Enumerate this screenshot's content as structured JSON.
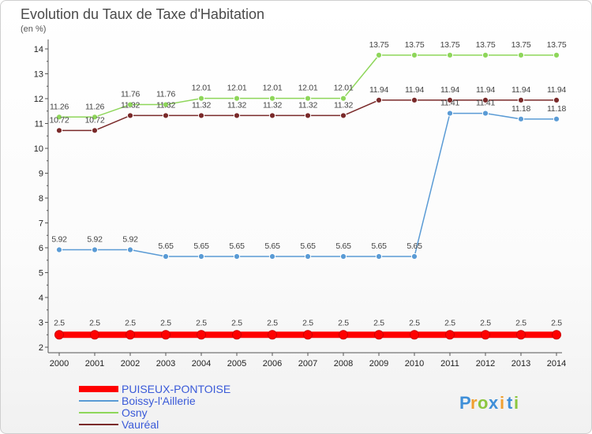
{
  "chart_data": {
    "type": "line",
    "title": "Evolution du Taux de Taxe d'Habitation",
    "subtitle": "(en %)",
    "xlabel": "",
    "ylabel": "",
    "x": [
      "2000",
      "2001",
      "2002",
      "2003",
      "2004",
      "2005",
      "2006",
      "2007",
      "2008",
      "2009",
      "2010",
      "2011",
      "2012",
      "2013",
      "2014"
    ],
    "y_ticks": [
      "2",
      "3",
      "4",
      "5",
      "6",
      "7",
      "8",
      "9",
      "10",
      "11",
      "12",
      "13",
      "14"
    ],
    "ylim": [
      2,
      14
    ],
    "grid": false,
    "legend_position": "bottom-left",
    "series": [
      {
        "name": "PUISEUX-PONTOISE",
        "color": "#ff0000",
        "values": [
          2.5,
          2.5,
          2.5,
          2.5,
          2.5,
          2.5,
          2.5,
          2.5,
          2.5,
          2.5,
          2.5,
          2.5,
          2.5,
          2.5,
          2.5
        ],
        "labels": [
          "2.5",
          "2.5",
          "2.5",
          "2.5",
          "2.5",
          "2.5",
          "2.5",
          "2.5",
          "2.5",
          "2.5",
          "2.5",
          "2.5",
          "2.5",
          "2.5",
          "2.5"
        ]
      },
      {
        "name": "Boissy-l'Aillerie",
        "color": "#5a9bd5",
        "values": [
          5.92,
          5.92,
          5.92,
          5.65,
          5.65,
          5.65,
          5.65,
          5.65,
          5.65,
          5.65,
          5.65,
          11.41,
          11.41,
          11.18,
          11.18
        ],
        "labels": [
          "5.92",
          "5.92",
          "5.92",
          "5.65",
          "5.65",
          "5.65",
          "5.65",
          "5.65",
          "5.65",
          "5.65",
          "5.65",
          "11.41",
          "11.41",
          "11.18",
          "11.18"
        ]
      },
      {
        "name": "Osny",
        "color": "#8ed65a",
        "values": [
          11.26,
          11.26,
          11.76,
          11.76,
          12.01,
          12.01,
          12.01,
          12.01,
          12.01,
          13.75,
          13.75,
          13.75,
          13.75,
          13.75,
          13.75
        ],
        "labels": [
          "11.26",
          "11.26",
          "11.76",
          "11.76",
          "12.01",
          "12.01",
          "12.01",
          "12.01",
          "12.01",
          "13.75",
          "13.75",
          "13.75",
          "13.75",
          "13.75",
          "13.75"
        ]
      },
      {
        "name": "Vauréal",
        "color": "#7a2a2a",
        "values": [
          10.72,
          10.72,
          11.32,
          11.32,
          11.32,
          11.32,
          11.32,
          11.32,
          11.32,
          11.94,
          11.94,
          11.94,
          11.94,
          11.94,
          11.94
        ],
        "labels": [
          "10.72",
          "10.72",
          "11.32",
          "11.32",
          "11.32",
          "11.32",
          "11.32",
          "11.32",
          "11.32",
          "11.94",
          "11.94",
          "11.94",
          "11.94",
          "11.94",
          "11.94"
        ]
      }
    ]
  },
  "logo": {
    "letters": [
      "P",
      "r",
      "o",
      "x",
      "i",
      "t",
      "i"
    ],
    "colors": [
      "#3f8fd8",
      "#f0a030",
      "#8cc63f",
      "#3f8fd8",
      "#f0a030",
      "#3f8fd8",
      "#8cc63f"
    ]
  }
}
